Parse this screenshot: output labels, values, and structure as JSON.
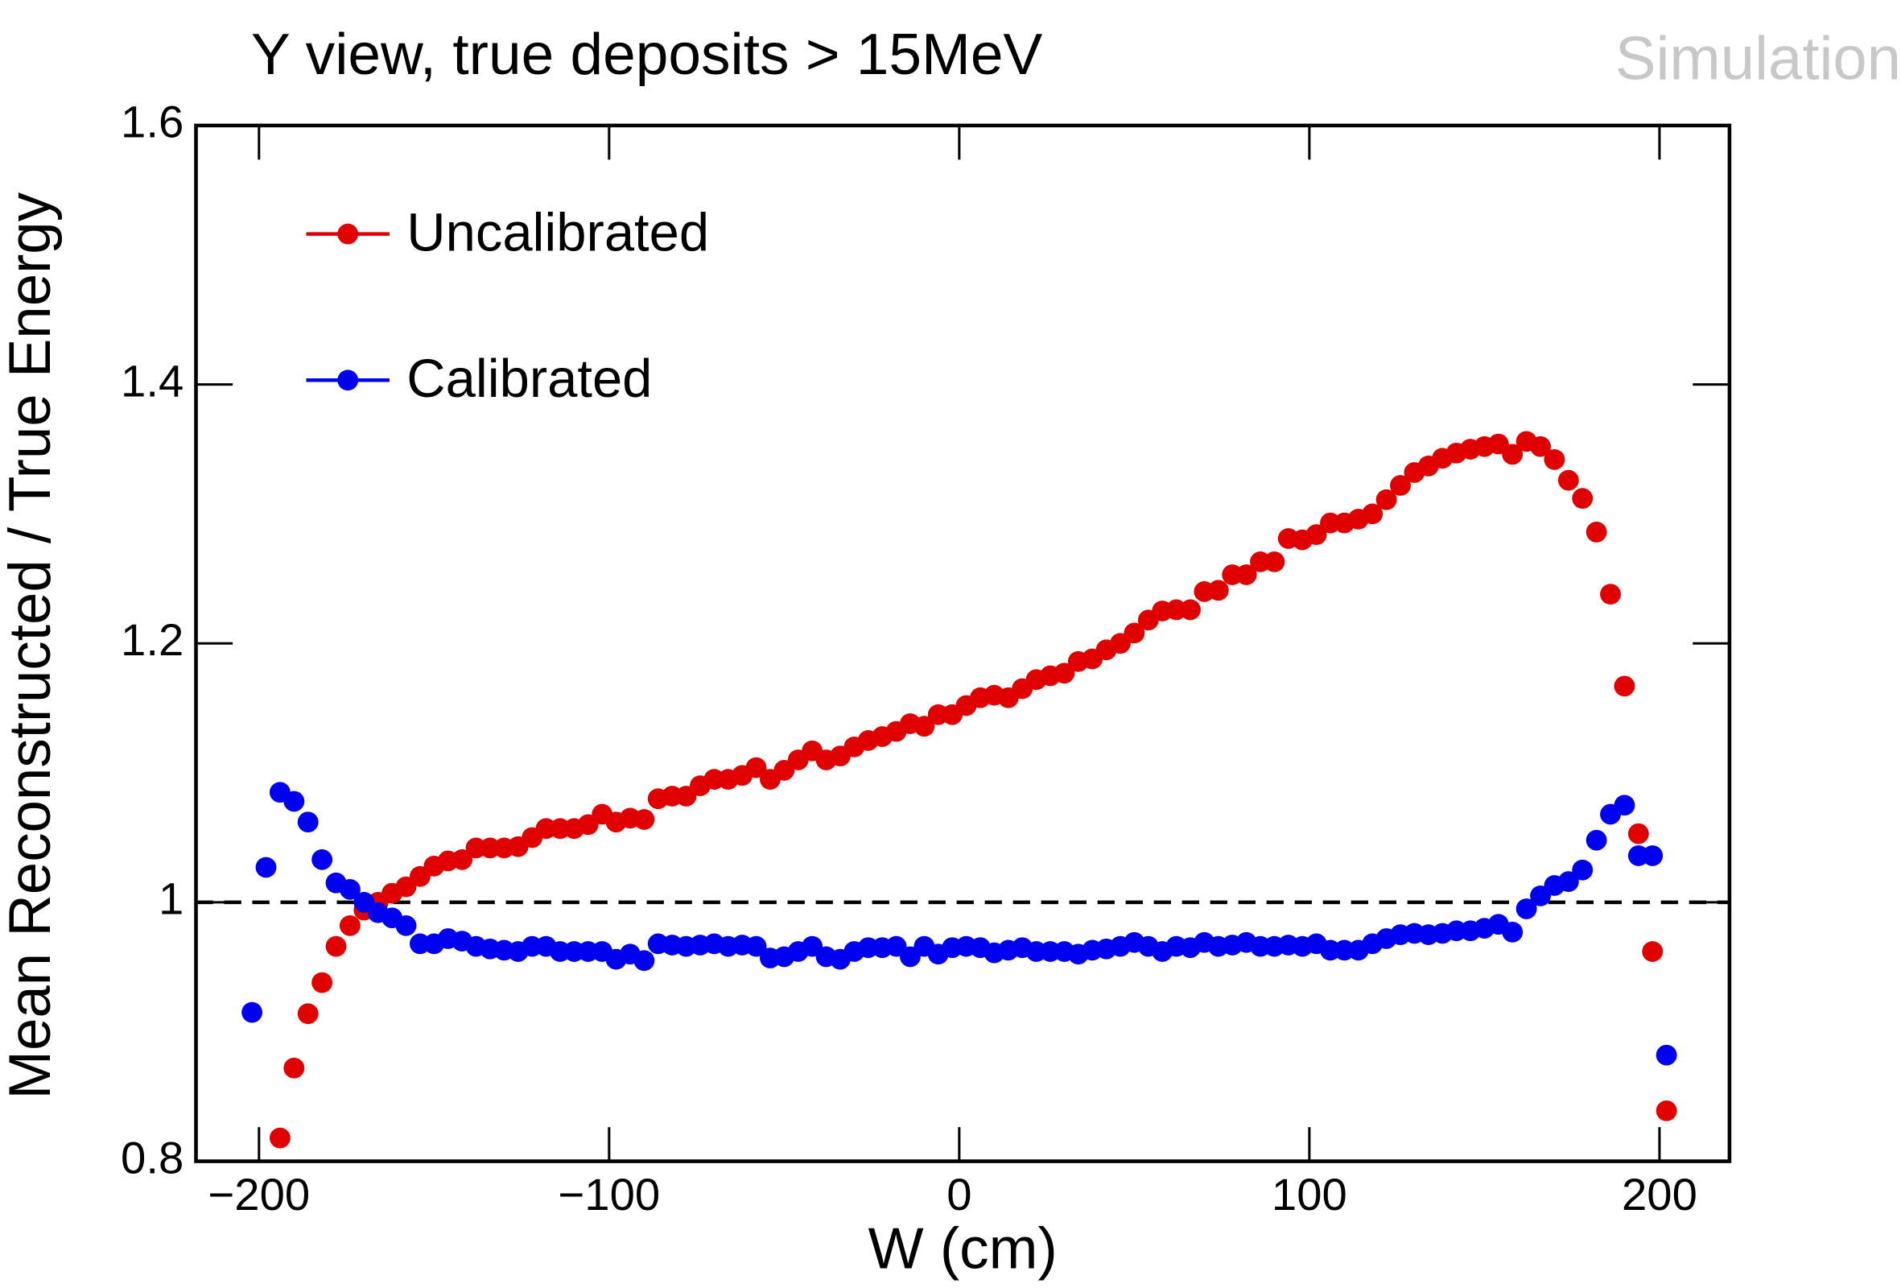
{
  "chart_data": {
    "type": "scatter",
    "title": "Y view, true deposits > 15MeV",
    "annotation": "Simulation",
    "x_label": "W (cm)",
    "y_label": "Mean Reconstructed / True Energy",
    "x": [
      -202,
      -198,
      -194,
      -190,
      -186,
      -182,
      -178,
      -174,
      -170,
      -166,
      -162,
      -158,
      -154,
      -150,
      -146,
      -142,
      -138,
      -134,
      -130,
      -126,
      -122,
      -118,
      -114,
      -110,
      -106,
      -102,
      -98,
      -94,
      -90,
      -86,
      -82,
      -78,
      -74,
      -70,
      -66,
      -62,
      -58,
      -54,
      -50,
      -46,
      -42,
      -38,
      -34,
      -30,
      -26,
      -22,
      -18,
      -14,
      -10,
      -6,
      -2,
      2,
      6,
      10,
      14,
      18,
      22,
      26,
      30,
      34,
      38,
      42,
      46,
      50,
      54,
      58,
      62,
      66,
      70,
      74,
      78,
      82,
      86,
      90,
      94,
      98,
      102,
      106,
      110,
      114,
      118,
      122,
      126,
      130,
      134,
      138,
      142,
      146,
      150,
      154,
      158,
      162,
      166,
      170,
      174,
      178,
      182,
      186,
      190,
      194,
      198,
      202
    ],
    "series": [
      {
        "name": "Uncalibrated",
        "color": "#e00000",
        "values": [
          null,
          null,
          0.818,
          0.872,
          0.914,
          0.938,
          0.966,
          0.982,
          0.994,
          1.0,
          1.007,
          1.012,
          1.02,
          1.028,
          1.032,
          1.033,
          1.042,
          1.042,
          1.042,
          1.043,
          1.05,
          1.057,
          1.057,
          1.057,
          1.06,
          1.068,
          1.062,
          1.065,
          1.064,
          1.08,
          1.082,
          1.082,
          1.09,
          1.095,
          1.095,
          1.098,
          1.104,
          1.095,
          1.102,
          1.11,
          1.117,
          1.11,
          1.113,
          1.12,
          1.125,
          1.128,
          1.132,
          1.138,
          1.136,
          1.145,
          1.145,
          1.152,
          1.158,
          1.16,
          1.158,
          1.165,
          1.172,
          1.175,
          1.177,
          1.186,
          1.188,
          1.195,
          1.2,
          1.208,
          1.218,
          1.225,
          1.226,
          1.226,
          1.24,
          1.241,
          1.253,
          1.253,
          1.263,
          1.263,
          1.281,
          1.28,
          1.284,
          1.293,
          1.293,
          1.296,
          1.3,
          1.311,
          1.322,
          1.332,
          1.337,
          1.343,
          1.347,
          1.35,
          1.352,
          1.354,
          1.346,
          1.356,
          1.352,
          1.342,
          1.326,
          1.312,
          1.286,
          1.238,
          1.167,
          1.053,
          0.962,
          0.839
        ]
      },
      {
        "name": "Calibrated",
        "color": "#0000f0",
        "values": [
          0.915,
          1.027,
          1.085,
          1.078,
          1.062,
          1.033,
          1.015,
          1.01,
          1.0,
          0.992,
          0.988,
          0.982,
          0.968,
          0.968,
          0.972,
          0.97,
          0.966,
          0.964,
          0.963,
          0.962,
          0.966,
          0.966,
          0.962,
          0.962,
          0.962,
          0.962,
          0.956,
          0.96,
          0.955,
          0.968,
          0.967,
          0.966,
          0.967,
          0.968,
          0.966,
          0.967,
          0.966,
          0.957,
          0.958,
          0.962,
          0.966,
          0.958,
          0.956,
          0.962,
          0.965,
          0.965,
          0.966,
          0.958,
          0.966,
          0.96,
          0.965,
          0.966,
          0.965,
          0.961,
          0.963,
          0.965,
          0.962,
          0.962,
          0.962,
          0.96,
          0.963,
          0.964,
          0.966,
          0.969,
          0.966,
          0.962,
          0.966,
          0.965,
          0.969,
          0.966,
          0.967,
          0.969,
          0.966,
          0.966,
          0.967,
          0.966,
          0.968,
          0.963,
          0.963,
          0.963,
          0.968,
          0.972,
          0.975,
          0.976,
          0.975,
          0.976,
          0.978,
          0.978,
          0.98,
          0.983,
          0.977,
          0.995,
          1.005,
          1.013,
          1.016,
          1.025,
          1.048,
          1.068,
          1.075,
          1.036,
          1.036,
          0.882
        ]
      }
    ],
    "reference_line": 1,
    "xlim": [
      -218,
      220
    ],
    "ylim": [
      0.8,
      1.6
    ],
    "xticks": [
      {
        "value": -200,
        "label": "−200"
      },
      {
        "value": -100,
        "label": "−100"
      },
      0,
      100,
      200
    ],
    "yticks": [
      0.8,
      1,
      1.2,
      1.4,
      1.6
    ],
    "legend": "upper left"
  }
}
